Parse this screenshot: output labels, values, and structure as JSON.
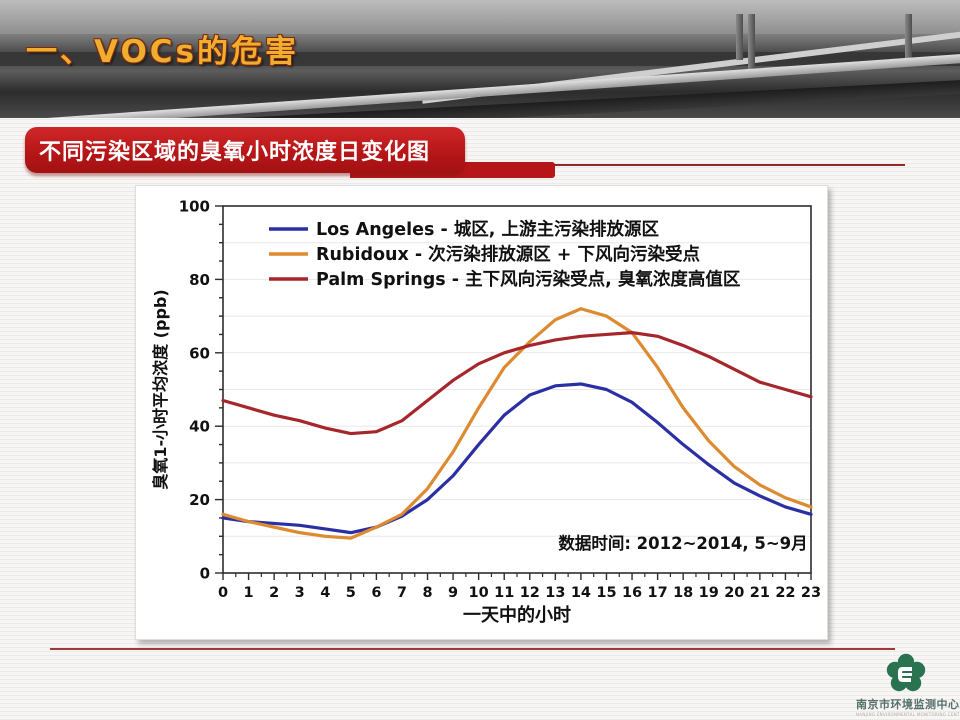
{
  "header": {
    "title": "一、VOCs的危害"
  },
  "section": {
    "title": "不同污染区域的臭氧小时浓度日变化图"
  },
  "footer": {
    "logo_name": "南京市环境监测中心站",
    "logo_sub": "NANJING ENVIRONMENTAL MONITORING CENTER"
  },
  "chart_data": {
    "type": "line",
    "x": [
      0,
      1,
      2,
      3,
      4,
      5,
      6,
      7,
      8,
      9,
      10,
      11,
      12,
      13,
      14,
      15,
      16,
      17,
      18,
      19,
      20,
      21,
      22,
      23
    ],
    "series": [
      {
        "name": "Los Angeles",
        "description": "城区, 上游主污染排放源区",
        "color": "#2b2fa4",
        "values": [
          15,
          14,
          13.5,
          13,
          12,
          11,
          12.5,
          15.5,
          20,
          26.5,
          35,
          43,
          48.5,
          51,
          51.5,
          50,
          46.5,
          41,
          35,
          29.5,
          24.5,
          21,
          18,
          16
        ]
      },
      {
        "name": "Rubidoux",
        "description": "次污染排放源区 + 下风向污染受点",
        "color": "#dd8a30",
        "values": [
          16,
          14,
          12.5,
          11,
          10,
          9.5,
          12.5,
          16,
          23,
          33,
          45,
          56,
          63,
          69,
          72,
          70,
          65.5,
          56,
          45,
          36,
          29,
          24,
          20.5,
          18
        ]
      },
      {
        "name": "Palm Springs",
        "description": "主下风向污染受点, 臭氧浓度高值区",
        "color": "#a5262b",
        "values": [
          47,
          45,
          43,
          41.5,
          39.5,
          38,
          38.5,
          41.5,
          47,
          52.5,
          57,
          60,
          62,
          63.5,
          64.5,
          65,
          65.5,
          64.5,
          62,
          59,
          55.5,
          52,
          50,
          48
        ]
      }
    ],
    "title": "",
    "xlabel": "一天中的小时",
    "ylabel": "臭氧1-小时平均浓度 (ppb)",
    "xlim": [
      0,
      23
    ],
    "ylim": [
      0,
      100
    ],
    "yticks": [
      0,
      20,
      40,
      60,
      80,
      100
    ],
    "y_minor_step": 5,
    "grid": "faint horizontal every 10",
    "legend_position": "inside top-left",
    "annotation": "数据时间: 2012~2014, 5~9月",
    "legend_separator": "-"
  }
}
